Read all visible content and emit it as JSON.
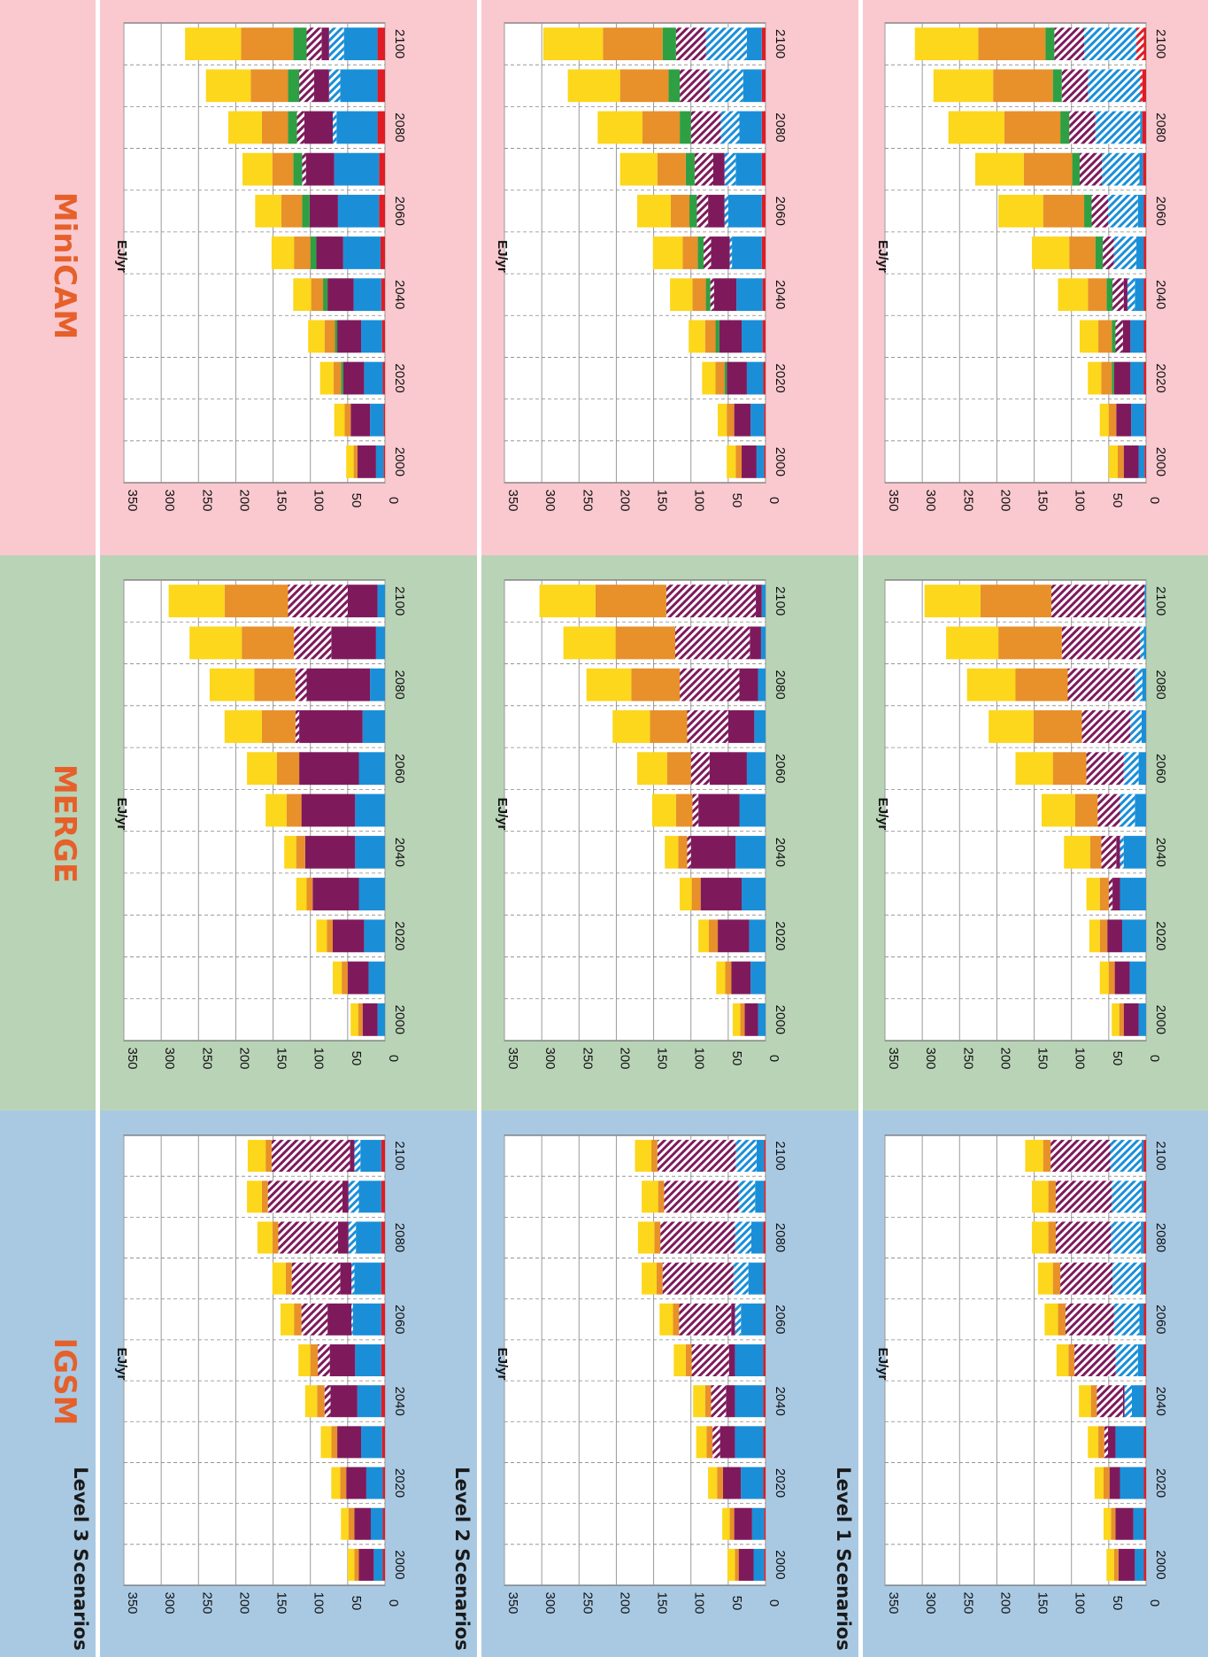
{
  "colors": {
    "igsm_bg": "#a9c9e3",
    "merge_bg": "#b9d3b7",
    "minicam_bg": "#f9c9cf",
    "title": "#e5602a",
    "divider": "#ffffff"
  },
  "layout_note_text": "",
  "models": [
    {
      "key": "igsm",
      "title": "IGSM"
    },
    {
      "key": "merge",
      "title": "MERGE"
    },
    {
      "key": "minicam",
      "title": "MiniCAM"
    }
  ],
  "levels": [
    {
      "key": "l3",
      "label": "Level 3 Scenarios"
    },
    {
      "key": "l2",
      "label": "Level 2 Scenarios"
    },
    {
      "key": "l1",
      "label": "Level 1 Scenarios"
    }
  ],
  "chart_data": {
    "type": "bar",
    "orientation": "rotated-90-counterclockwise",
    "stacked": true,
    "categories": [
      "2000",
      "2010",
      "2020",
      "2030",
      "2040",
      "2050",
      "2060",
      "2070",
      "2080",
      "2090",
      "2100"
    ],
    "x_tick_labels": [
      "2000",
      "2020",
      "2040",
      "2060",
      "2080",
      "2100"
    ],
    "ylabel": "EJ/yr",
    "ylim": [
      0,
      350
    ],
    "y_ticks": [
      0,
      50,
      100,
      150,
      200,
      250,
      300,
      350
    ],
    "grid": true,
    "series_styles": [
      {
        "color": "#e01b24",
        "pattern": "solid"
      },
      {
        "color": "#e01b24",
        "pattern": "hatched"
      },
      {
        "color": "#1a8fd8",
        "pattern": "solid"
      },
      {
        "color": "#1a8fd8",
        "pattern": "hatched"
      },
      {
        "color": "#7e1a5c",
        "pattern": "solid"
      },
      {
        "color": "#7e1a5c",
        "pattern": "hatched"
      },
      {
        "color": "#2ea043",
        "pattern": "solid"
      },
      {
        "color": "#e8902a",
        "pattern": "solid"
      },
      {
        "color": "#fcd71b",
        "pattern": "solid"
      }
    ],
    "charts": [
      {
        "model": "IGSM",
        "level": "Level 3 Scenarios",
        "stacks": [
          [
            3,
            0,
            12,
            0,
            20,
            0,
            0,
            6,
            9
          ],
          [
            3,
            0,
            16,
            0,
            22,
            0,
            0,
            8,
            10
          ],
          [
            3,
            0,
            22,
            0,
            27,
            0,
            0,
            8,
            12
          ],
          [
            4,
            0,
            28,
            0,
            32,
            0,
            0,
            8,
            14
          ],
          [
            5,
            0,
            32,
            0,
            36,
            8,
            0,
            10,
            16
          ],
          [
            5,
            0,
            35,
            0,
            34,
            16,
            0,
            10,
            16
          ],
          [
            5,
            0,
            38,
            2,
            32,
            35,
            0,
            10,
            18
          ],
          [
            5,
            0,
            36,
            4,
            15,
            65,
            0,
            8,
            18
          ],
          [
            5,
            0,
            34,
            10,
            14,
            80,
            0,
            8,
            20
          ],
          [
            5,
            0,
            30,
            14,
            8,
            100,
            0,
            8,
            20
          ],
          [
            5,
            0,
            28,
            8,
            6,
            105,
            0,
            8,
            24
          ]
        ]
      },
      {
        "model": "IGSM",
        "level": "Level 2 Scenarios",
        "stacks": [
          [
            2,
            0,
            14,
            0,
            20,
            0,
            0,
            5,
            10
          ],
          [
            2,
            0,
            16,
            0,
            24,
            0,
            0,
            6,
            10
          ],
          [
            3,
            0,
            30,
            0,
            24,
            0,
            0,
            8,
            12
          ],
          [
            3,
            0,
            38,
            0,
            20,
            10,
            0,
            8,
            14
          ],
          [
            3,
            0,
            38,
            0,
            12,
            20,
            0,
            8,
            16
          ],
          [
            3,
            0,
            38,
            0,
            8,
            50,
            0,
            8,
            16
          ],
          [
            3,
            0,
            30,
            8,
            5,
            70,
            0,
            8,
            18
          ],
          [
            3,
            0,
            20,
            20,
            0,
            95,
            0,
            8,
            20
          ],
          [
            3,
            0,
            16,
            22,
            0,
            100,
            0,
            8,
            22
          ],
          [
            2,
            0,
            12,
            22,
            0,
            100,
            0,
            8,
            22
          ],
          [
            2,
            0,
            10,
            28,
            0,
            105,
            0,
            8,
            22
          ]
        ]
      },
      {
        "model": "IGSM",
        "level": "Level 1 Scenarios",
        "stacks": [
          [
            3,
            0,
            12,
            0,
            22,
            0,
            0,
            6,
            10
          ],
          [
            3,
            0,
            14,
            0,
            24,
            0,
            0,
            6,
            10
          ],
          [
            3,
            0,
            32,
            0,
            14,
            0,
            0,
            8,
            12
          ],
          [
            3,
            0,
            38,
            0,
            10,
            5,
            0,
            8,
            14
          ],
          [
            3,
            0,
            16,
            10,
            2,
            35,
            0,
            8,
            16
          ],
          [
            3,
            0,
            8,
            30,
            0,
            55,
            0,
            8,
            16
          ],
          [
            3,
            0,
            6,
            34,
            0,
            65,
            0,
            10,
            18
          ],
          [
            3,
            0,
            4,
            38,
            0,
            70,
            0,
            10,
            20
          ],
          [
            3,
            0,
            4,
            40,
            0,
            74,
            0,
            10,
            22
          ],
          [
            3,
            0,
            3,
            40,
            0,
            75,
            0,
            10,
            22
          ],
          [
            3,
            0,
            3,
            42,
            0,
            80,
            0,
            10,
            24
          ]
        ]
      },
      {
        "model": "MERGE",
        "level": "Level 3 Scenarios",
        "stacks": [
          [
            0,
            0,
            10,
            0,
            20,
            0,
            0,
            6,
            10
          ],
          [
            0,
            0,
            22,
            0,
            28,
            0,
            0,
            8,
            12
          ],
          [
            0,
            0,
            28,
            0,
            42,
            0,
            0,
            8,
            14
          ],
          [
            0,
            0,
            35,
            0,
            62,
            0,
            0,
            8,
            14
          ],
          [
            0,
            0,
            40,
            0,
            67,
            0,
            0,
            12,
            16
          ],
          [
            0,
            0,
            40,
            0,
            72,
            0,
            0,
            20,
            28
          ],
          [
            0,
            0,
            35,
            0,
            80,
            0,
            0,
            30,
            40
          ],
          [
            0,
            0,
            30,
            0,
            85,
            5,
            0,
            45,
            50
          ],
          [
            0,
            0,
            20,
            0,
            85,
            15,
            0,
            55,
            60
          ],
          [
            0,
            0,
            12,
            0,
            60,
            50,
            0,
            70,
            70
          ],
          [
            0,
            0,
            10,
            0,
            40,
            80,
            0,
            85,
            75
          ]
        ]
      },
      {
        "model": "MERGE",
        "level": "Level 2 Scenarios",
        "stacks": [
          [
            0,
            0,
            10,
            0,
            18,
            0,
            0,
            6,
            10
          ],
          [
            0,
            0,
            20,
            0,
            26,
            0,
            0,
            8,
            12
          ],
          [
            0,
            0,
            22,
            0,
            42,
            0,
            0,
            12,
            14
          ],
          [
            0,
            0,
            32,
            0,
            55,
            0,
            0,
            12,
            16
          ],
          [
            0,
            0,
            40,
            0,
            60,
            5,
            0,
            12,
            18
          ],
          [
            0,
            0,
            35,
            0,
            55,
            8,
            0,
            22,
            32
          ],
          [
            0,
            0,
            25,
            0,
            50,
            25,
            0,
            32,
            40
          ],
          [
            0,
            0,
            15,
            0,
            35,
            55,
            0,
            50,
            50
          ],
          [
            0,
            0,
            10,
            0,
            25,
            80,
            0,
            65,
            60
          ],
          [
            0,
            0,
            6,
            0,
            15,
            100,
            0,
            80,
            70
          ],
          [
            0,
            0,
            5,
            0,
            8,
            120,
            0,
            95,
            75
          ]
        ]
      },
      {
        "model": "MERGE",
        "level": "Level 1 Scenarios",
        "stacks": [
          [
            0,
            0,
            10,
            0,
            20,
            0,
            0,
            6,
            10
          ],
          [
            0,
            0,
            22,
            0,
            20,
            0,
            0,
            8,
            12
          ],
          [
            0,
            0,
            32,
            0,
            20,
            0,
            0,
            10,
            14
          ],
          [
            0,
            0,
            35,
            0,
            10,
            5,
            0,
            12,
            18
          ],
          [
            0,
            0,
            30,
            5,
            5,
            20,
            0,
            15,
            35
          ],
          [
            0,
            0,
            15,
            20,
            0,
            30,
            0,
            30,
            45
          ],
          [
            0,
            0,
            10,
            20,
            0,
            50,
            0,
            45,
            50
          ],
          [
            0,
            0,
            6,
            15,
            0,
            65,
            0,
            65,
            60
          ],
          [
            0,
            0,
            5,
            10,
            0,
            90,
            0,
            70,
            65
          ],
          [
            0,
            0,
            3,
            5,
            0,
            105,
            0,
            85,
            70
          ],
          [
            0,
            0,
            2,
            0,
            0,
            125,
            0,
            95,
            75
          ]
        ]
      },
      {
        "model": "MiniCAM",
        "level": "Level 3 Scenarios",
        "stacks": [
          [
            2,
            0,
            10,
            0,
            25,
            0,
            0,
            5,
            10
          ],
          [
            2,
            0,
            18,
            0,
            26,
            0,
            0,
            8,
            14
          ],
          [
            3,
            0,
            25,
            0,
            28,
            0,
            3,
            10,
            18
          ],
          [
            4,
            0,
            28,
            0,
            32,
            0,
            3,
            14,
            22
          ],
          [
            5,
            0,
            37,
            0,
            35,
            0,
            6,
            16,
            24
          ],
          [
            6,
            0,
            50,
            0,
            36,
            0,
            8,
            22,
            30
          ],
          [
            8,
            0,
            55,
            0,
            38,
            0,
            10,
            28,
            35
          ],
          [
            8,
            0,
            60,
            0,
            38,
            5,
            12,
            28,
            40
          ],
          [
            10,
            0,
            55,
            5,
            38,
            10,
            12,
            35,
            45
          ],
          [
            10,
            0,
            50,
            15,
            20,
            20,
            15,
            50,
            60
          ],
          [
            10,
            0,
            45,
            20,
            10,
            20,
            18,
            70,
            75
          ]
        ]
      },
      {
        "model": "MiniCAM",
        "level": "Level 2 Scenarios",
        "stacks": [
          [
            2,
            0,
            10,
            0,
            20,
            0,
            0,
            8,
            12
          ],
          [
            2,
            0,
            18,
            0,
            22,
            0,
            0,
            10,
            12
          ],
          [
            3,
            0,
            22,
            0,
            27,
            0,
            3,
            12,
            18
          ],
          [
            4,
            0,
            28,
            0,
            30,
            0,
            5,
            14,
            22
          ],
          [
            4,
            0,
            35,
            0,
            30,
            5,
            6,
            18,
            30
          ],
          [
            5,
            0,
            40,
            3,
            25,
            10,
            8,
            20,
            40
          ],
          [
            5,
            0,
            45,
            5,
            22,
            15,
            10,
            25,
            45
          ],
          [
            5,
            0,
            35,
            15,
            15,
            25,
            12,
            38,
            50
          ],
          [
            5,
            0,
            30,
            25,
            0,
            40,
            15,
            50,
            60
          ],
          [
            5,
            0,
            25,
            45,
            0,
            40,
            15,
            65,
            70
          ],
          [
            5,
            0,
            20,
            55,
            0,
            40,
            18,
            80,
            80
          ]
        ]
      },
      {
        "model": "MiniCAM",
        "level": "Level 1 Scenarios",
        "stacks": [
          [
            2,
            0,
            8,
            0,
            20,
            0,
            0,
            8,
            12
          ],
          [
            2,
            0,
            18,
            0,
            20,
            0,
            0,
            10,
            12
          ],
          [
            3,
            0,
            18,
            0,
            22,
            0,
            3,
            14,
            18
          ],
          [
            3,
            0,
            18,
            0,
            10,
            10,
            5,
            18,
            25
          ],
          [
            3,
            0,
            12,
            10,
            5,
            15,
            8,
            25,
            40
          ],
          [
            3,
            0,
            10,
            30,
            0,
            15,
            10,
            35,
            50
          ],
          [
            3,
            0,
            8,
            40,
            0,
            22,
            10,
            55,
            60
          ],
          [
            4,
            0,
            5,
            50,
            0,
            30,
            10,
            65,
            65
          ],
          [
            5,
            0,
            3,
            60,
            0,
            35,
            12,
            75,
            75
          ],
          [
            5,
            3,
            0,
            70,
            0,
            35,
            12,
            80,
            80
          ],
          [
            3,
            10,
            0,
            70,
            0,
            40,
            12,
            90,
            85
          ]
        ]
      }
    ]
  }
}
